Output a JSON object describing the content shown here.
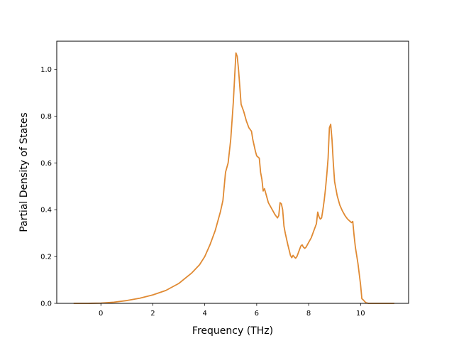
{
  "chart_data": {
    "type": "line",
    "title": "",
    "xlabel": "Frequency (THz)",
    "ylabel": "Partial Density of States",
    "xlim": [
      -1.7,
      11.85
    ],
    "ylim": [
      0,
      1.12
    ],
    "xticks": [
      0,
      2,
      4,
      6,
      8,
      10
    ],
    "xtick_labels": [
      "0",
      "2",
      "4",
      "6",
      "8",
      "10"
    ],
    "yticks": [
      0.0,
      0.2,
      0.4,
      0.6,
      0.8,
      1.0
    ],
    "ytick_labels": [
      "0.0",
      "0.2",
      "0.4",
      "0.6",
      "0.8",
      "1.0"
    ],
    "grid": false,
    "legend": "none",
    "series": [
      {
        "color": "#e08a33",
        "x": [
          -1.05,
          -0.5,
          0.0,
          0.5,
          1.0,
          1.5,
          2.0,
          2.5,
          3.0,
          3.5,
          3.8,
          4.0,
          4.2,
          4.4,
          4.6,
          4.7,
          4.8,
          4.9,
          5.0,
          5.1,
          5.2,
          5.25,
          5.3,
          5.4,
          5.5,
          5.6,
          5.7,
          5.8,
          5.85,
          5.95,
          6.0,
          6.1,
          6.15,
          6.2,
          6.25,
          6.3,
          6.35,
          6.4,
          6.45,
          6.5,
          6.6,
          6.7,
          6.8,
          6.85,
          6.9,
          6.95,
          7.0,
          7.05,
          7.1,
          7.2,
          7.3,
          7.35,
          7.4,
          7.45,
          7.5,
          7.55,
          7.6,
          7.65,
          7.7,
          7.75,
          7.8,
          7.85,
          7.9,
          8.0,
          8.1,
          8.2,
          8.3,
          8.35,
          8.4,
          8.45,
          8.5,
          8.55,
          8.6,
          8.65,
          8.7,
          8.75,
          8.8,
          8.85,
          8.9,
          8.95,
          9.0,
          9.1,
          9.2,
          9.3,
          9.4,
          9.5,
          9.6,
          9.65,
          9.7,
          9.75,
          9.8,
          9.9,
          10.0,
          10.05,
          10.1,
          10.2,
          10.3,
          10.5,
          11.0,
          11.3
        ],
        "y": [
          0.0,
          0.0,
          0.001,
          0.005,
          0.012,
          0.022,
          0.036,
          0.055,
          0.085,
          0.13,
          0.165,
          0.2,
          0.25,
          0.31,
          0.39,
          0.44,
          0.56,
          0.6,
          0.7,
          0.86,
          1.07,
          1.055,
          1.0,
          0.85,
          0.82,
          0.78,
          0.75,
          0.735,
          0.7,
          0.65,
          0.63,
          0.62,
          0.56,
          0.53,
          0.48,
          0.49,
          0.47,
          0.45,
          0.43,
          0.42,
          0.4,
          0.38,
          0.365,
          0.375,
          0.43,
          0.425,
          0.4,
          0.33,
          0.3,
          0.25,
          0.205,
          0.195,
          0.205,
          0.198,
          0.193,
          0.2,
          0.215,
          0.23,
          0.245,
          0.25,
          0.24,
          0.235,
          0.24,
          0.26,
          0.28,
          0.31,
          0.34,
          0.39,
          0.37,
          0.36,
          0.365,
          0.4,
          0.44,
          0.49,
          0.55,
          0.62,
          0.75,
          0.765,
          0.7,
          0.6,
          0.52,
          0.46,
          0.42,
          0.395,
          0.375,
          0.36,
          0.35,
          0.345,
          0.35,
          0.29,
          0.24,
          0.17,
          0.08,
          0.02,
          0.015,
          0.003,
          0.0,
          0.0,
          0.0,
          0.0
        ]
      }
    ]
  }
}
